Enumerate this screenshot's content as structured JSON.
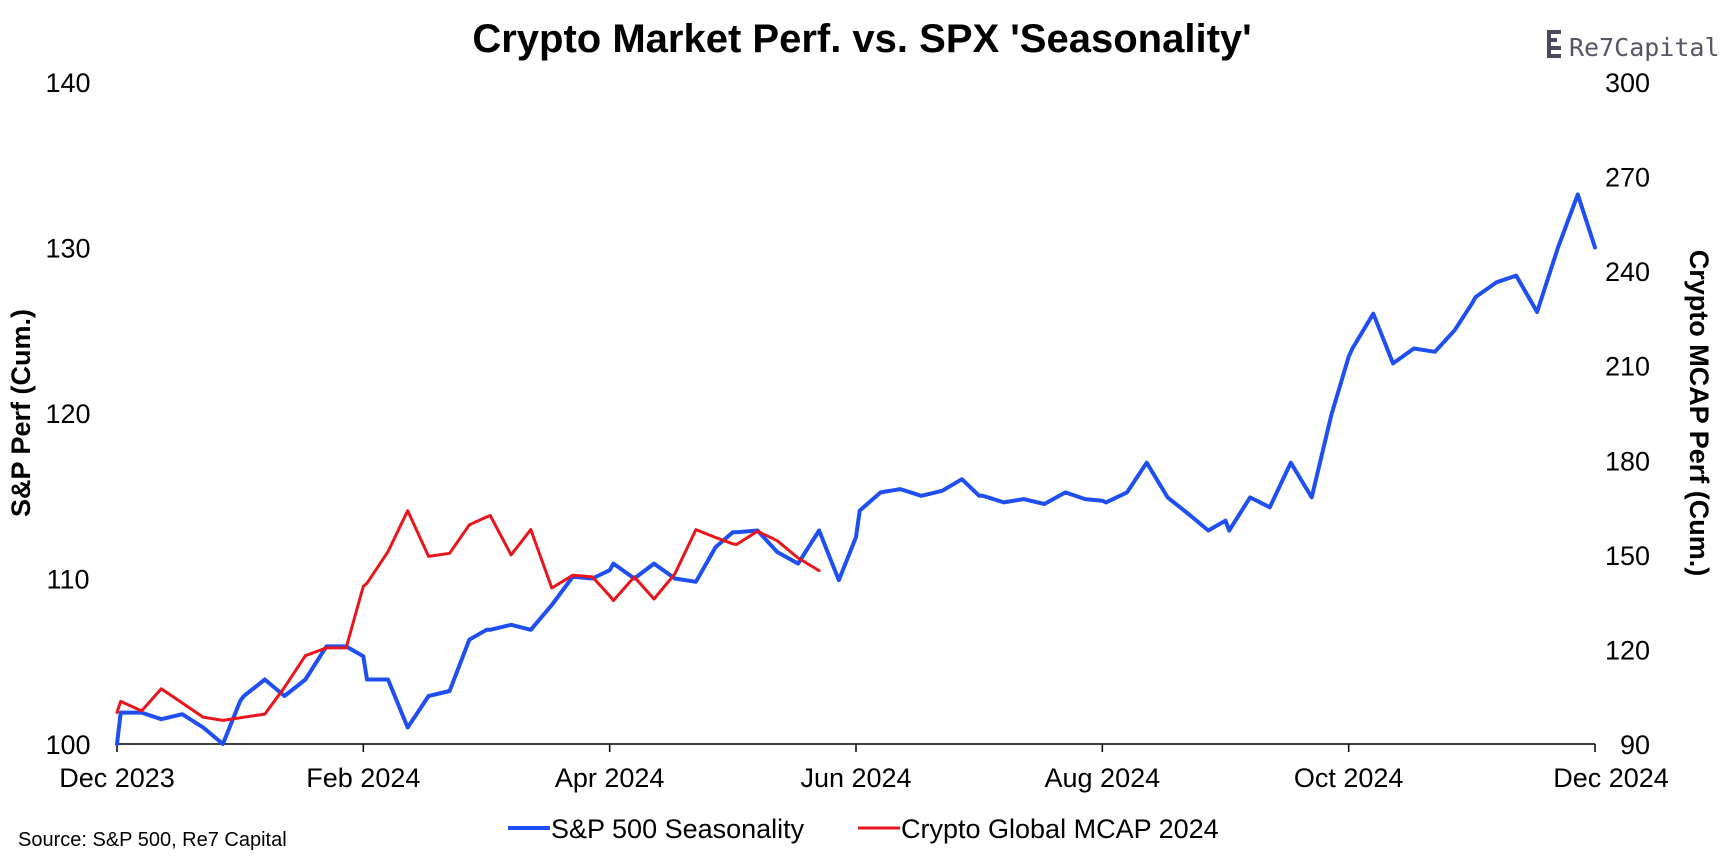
{
  "chart_data": {
    "type": "line",
    "title": "Crypto Market Perf. vs. SPX 'Seasonality'",
    "xlabel": "",
    "ylabel": "S&P Perf (Cum.)",
    "y2label": "Crypto MCAP Perf (Cum.)",
    "ylim": [
      100,
      140
    ],
    "y2lim": [
      90,
      300
    ],
    "x_range": [
      0,
      12
    ],
    "x_tick_labels": [
      "Dec 2023",
      "Feb 2024",
      "Apr 2024",
      "Jun 2024",
      "Aug 2024",
      "Oct 2024",
      "Dec 2024"
    ],
    "y_tick_labels": [
      "100",
      "110",
      "120",
      "130",
      "140"
    ],
    "y2_tick_labels": [
      "90",
      "120",
      "150",
      "180",
      "210",
      "240",
      "270",
      "300"
    ],
    "legend_position": "bottom",
    "series": [
      {
        "name": "S&P 500 Seasonality",
        "axis": "left",
        "color": "#1f4ff0",
        "x": [
          0.0,
          0.03,
          0.2,
          0.36,
          0.53,
          0.7,
          0.86,
          1.0,
          1.03,
          1.2,
          1.36,
          1.53,
          1.7,
          1.86,
          2.0,
          2.03,
          2.2,
          2.36,
          2.53,
          2.7,
          2.86,
          3.0,
          3.03,
          3.2,
          3.36,
          3.53,
          3.7,
          3.86,
          4.0,
          4.03,
          4.2,
          4.36,
          4.53,
          4.7,
          4.86,
          5.0,
          5.03,
          5.2,
          5.36,
          5.53,
          5.7,
          5.86,
          6.0,
          6.03,
          6.2,
          6.36,
          6.53,
          6.7,
          6.86,
          7.0,
          7.03,
          7.2,
          7.36,
          7.53,
          7.7,
          7.86,
          8.0,
          8.03,
          8.2,
          8.36,
          8.53,
          8.7,
          8.86,
          9.0,
          9.03,
          9.2,
          9.36,
          9.53,
          9.7,
          9.86,
          10.0,
          10.03,
          10.2,
          10.36,
          10.53,
          10.7,
          10.86,
          11.0,
          11.03,
          11.2,
          11.36,
          11.53,
          11.7,
          11.86,
          12.0
        ],
        "values": [
          100.0,
          101.9,
          101.9,
          101.5,
          101.8,
          101.0,
          100.0,
          102.6,
          102.9,
          103.9,
          102.9,
          103.9,
          105.9,
          105.9,
          105.3,
          103.9,
          103.9,
          101.0,
          102.9,
          103.2,
          106.3,
          106.9,
          106.9,
          107.2,
          106.9,
          108.4,
          110.1,
          110.0,
          110.5,
          110.9,
          110.0,
          110.9,
          110.0,
          109.8,
          111.9,
          112.8,
          112.8,
          112.9,
          111.6,
          110.9,
          112.9,
          109.9,
          112.5,
          114.1,
          115.2,
          115.4,
          115.0,
          115.3,
          116.0,
          115.0,
          115.0,
          114.6,
          114.8,
          114.5,
          115.2,
          114.8,
          114.7,
          114.6,
          115.2,
          117.0,
          114.9,
          113.9,
          112.9,
          113.5,
          112.9,
          114.9,
          114.3,
          117.0,
          114.9,
          119.9,
          123.4,
          123.9,
          126.0,
          123.0,
          123.9,
          123.7,
          125.0,
          126.6,
          127.0,
          127.9,
          128.3,
          126.1,
          130.0,
          133.2,
          130.0
        ]
      },
      {
        "name": "Crypto Global MCAP 2024",
        "axis": "right",
        "color": "#e8161c",
        "x": [
          0.0,
          0.03,
          0.2,
          0.36,
          0.53,
          0.7,
          0.86,
          1.0,
          1.03,
          1.2,
          1.36,
          1.53,
          1.7,
          1.86,
          2.0,
          2.03,
          2.2,
          2.36,
          2.53,
          2.7,
          2.86,
          3.0,
          3.03,
          3.2,
          3.36,
          3.53,
          3.7,
          3.86,
          4.0,
          4.03,
          4.2,
          4.36,
          4.53,
          4.7,
          4.86,
          5.0,
          5.03,
          5.2,
          5.36,
          5.53,
          5.7
        ],
        "values": [
          100,
          103.5,
          100.5,
          107.5,
          103,
          98.5,
          97.5,
          98.3,
          98.5,
          99.5,
          108,
          118,
          120.5,
          120.5,
          140,
          141,
          151,
          164,
          149.5,
          150.5,
          159.5,
          162,
          162.5,
          150,
          158,
          139.5,
          143.5,
          143,
          137,
          135.5,
          143,
          136,
          144,
          158,
          155.5,
          153.5,
          153.3,
          157.5,
          154.5,
          149,
          145
        ]
      }
    ],
    "source": "Source: S&P 500, Re7 Capital",
    "logo_text": "Re7Capital"
  }
}
